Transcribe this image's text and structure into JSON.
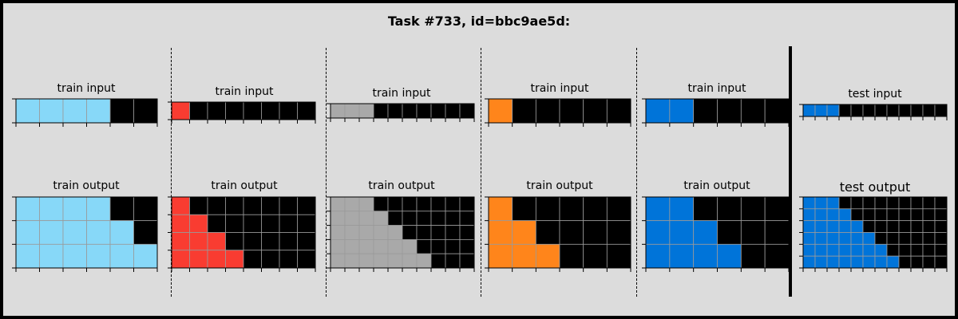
{
  "title": "Task #733, id=bbc9ae5d:",
  "colors": {
    "0": "#000000",
    "azure": "#87d8f8",
    "red": "#f93c31",
    "gray": "#a9a9a9",
    "orange": "#ff851b",
    "blue": "#0074d9"
  },
  "pairs": [
    {
      "input_label": "train input",
      "output_label": "train output",
      "color": "azure",
      "input": [
        [
          1,
          1,
          1,
          1,
          0,
          0
        ]
      ],
      "output": [
        [
          1,
          1,
          1,
          1,
          0,
          0
        ],
        [
          1,
          1,
          1,
          1,
          1,
          0
        ],
        [
          1,
          1,
          1,
          1,
          1,
          1
        ]
      ]
    },
    {
      "input_label": "train input",
      "output_label": "train output",
      "color": "red",
      "input": [
        [
          1,
          0,
          0,
          0,
          0,
          0,
          0,
          0
        ]
      ],
      "output": [
        [
          1,
          0,
          0,
          0,
          0,
          0,
          0,
          0
        ],
        [
          1,
          1,
          0,
          0,
          0,
          0,
          0,
          0
        ],
        [
          1,
          1,
          1,
          0,
          0,
          0,
          0,
          0
        ],
        [
          1,
          1,
          1,
          1,
          0,
          0,
          0,
          0
        ]
      ]
    },
    {
      "input_label": "train input",
      "output_label": "train output",
      "color": "gray",
      "input": [
        [
          1,
          1,
          1,
          0,
          0,
          0,
          0,
          0,
          0,
          0
        ]
      ],
      "output": [
        [
          1,
          1,
          1,
          0,
          0,
          0,
          0,
          0,
          0,
          0
        ],
        [
          1,
          1,
          1,
          1,
          0,
          0,
          0,
          0,
          0,
          0
        ],
        [
          1,
          1,
          1,
          1,
          1,
          0,
          0,
          0,
          0,
          0
        ],
        [
          1,
          1,
          1,
          1,
          1,
          1,
          0,
          0,
          0,
          0
        ],
        [
          1,
          1,
          1,
          1,
          1,
          1,
          1,
          0,
          0,
          0
        ]
      ]
    },
    {
      "input_label": "train input",
      "output_label": "train output",
      "color": "orange",
      "input": [
        [
          1,
          0,
          0,
          0,
          0,
          0
        ]
      ],
      "output": [
        [
          1,
          0,
          0,
          0,
          0,
          0
        ],
        [
          1,
          1,
          0,
          0,
          0,
          0
        ],
        [
          1,
          1,
          1,
          0,
          0,
          0
        ]
      ]
    },
    {
      "input_label": "train input",
      "output_label": "train output",
      "color": "blue",
      "input": [
        [
          1,
          1,
          0,
          0,
          0,
          0
        ]
      ],
      "output": [
        [
          1,
          1,
          0,
          0,
          0,
          0
        ],
        [
          1,
          1,
          1,
          0,
          0,
          0
        ],
        [
          1,
          1,
          1,
          1,
          0,
          0
        ]
      ]
    },
    {
      "input_label": "test input",
      "output_label": "test output",
      "color": "blue",
      "input": [
        [
          1,
          1,
          1,
          0,
          0,
          0,
          0,
          0,
          0,
          0,
          0,
          0
        ]
      ],
      "output": [
        [
          1,
          1,
          1,
          0,
          0,
          0,
          0,
          0,
          0,
          0,
          0,
          0
        ],
        [
          1,
          1,
          1,
          1,
          0,
          0,
          0,
          0,
          0,
          0,
          0,
          0
        ],
        [
          1,
          1,
          1,
          1,
          1,
          0,
          0,
          0,
          0,
          0,
          0,
          0
        ],
        [
          1,
          1,
          1,
          1,
          1,
          1,
          0,
          0,
          0,
          0,
          0,
          0
        ],
        [
          1,
          1,
          1,
          1,
          1,
          1,
          1,
          0,
          0,
          0,
          0,
          0
        ],
        [
          1,
          1,
          1,
          1,
          1,
          1,
          1,
          1,
          0,
          0,
          0,
          0
        ]
      ]
    }
  ]
}
